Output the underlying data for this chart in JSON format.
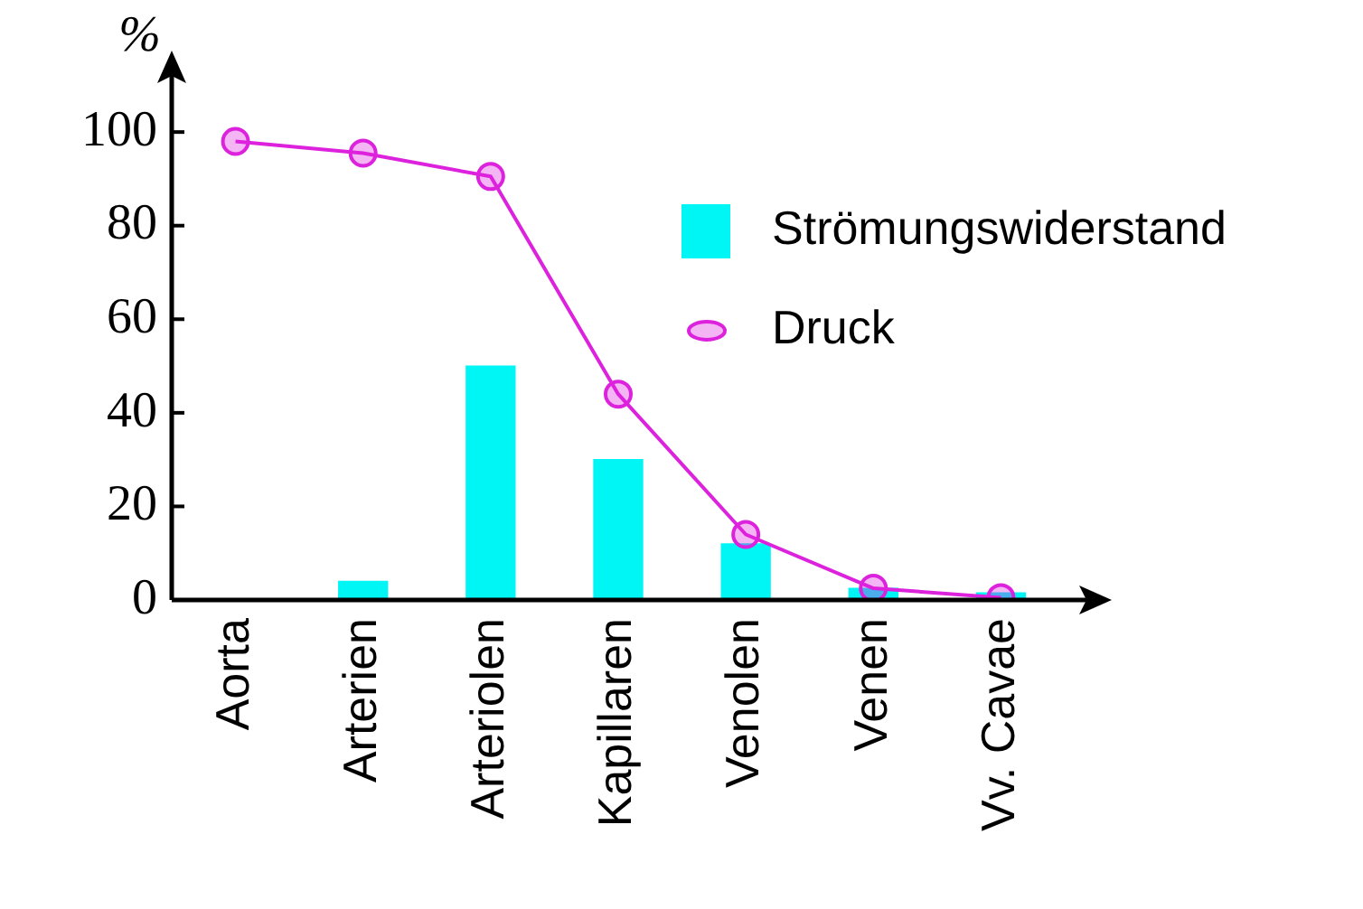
{
  "chart_data": {
    "type": "bar",
    "ylabel": "%",
    "categories": [
      "Aorta",
      "Arterien",
      "Arteriolen",
      "Kapillaren",
      "Venolen",
      "Venen",
      "Vv. Cavae"
    ],
    "series": [
      {
        "name": "Strömungswiderstand",
        "color": "#00f5f5",
        "values": [
          null,
          4,
          50,
          30,
          12,
          2.5,
          1.5
        ]
      },
      {
        "name": "Druck",
        "type": "line",
        "color": "#dd22dd",
        "values": [
          98,
          95.5,
          90.5,
          44,
          14,
          2.5,
          0.5
        ],
        "marker": "circle",
        "line_style": "solid"
      }
    ],
    "ylim": [
      0,
      112
    ],
    "yticks": [
      0,
      20,
      40,
      60,
      80,
      100
    ],
    "grid": false,
    "legend": "top right"
  }
}
